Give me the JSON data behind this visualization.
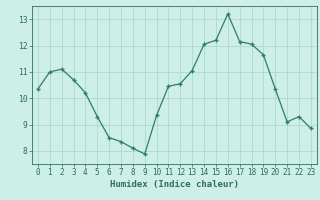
{
  "hours": [
    0,
    1,
    2,
    3,
    4,
    5,
    6,
    7,
    8,
    9,
    10,
    11,
    12,
    13,
    14,
    15,
    16,
    17,
    18,
    19,
    20,
    21,
    22,
    23
  ],
  "values": [
    10.35,
    11.0,
    11.1,
    10.7,
    10.2,
    9.3,
    8.5,
    8.35,
    8.1,
    7.88,
    9.35,
    10.45,
    10.55,
    11.05,
    12.05,
    12.2,
    13.2,
    12.15,
    12.05,
    11.65,
    10.35,
    9.1,
    9.3,
    8.85
  ],
  "xlabel": "Humidex (Indice chaleur)",
  "line_color": "#2d7d6e",
  "bg_color": "#ceeee8",
  "grid_color": "#b0d8cc",
  "text_color": "#2d6e60",
  "ylim": [
    7.5,
    13.5
  ],
  "xlim": [
    -0.5,
    23.5
  ],
  "yticks": [
    8,
    9,
    10,
    11,
    12,
    13
  ],
  "xticks": [
    0,
    1,
    2,
    3,
    4,
    5,
    6,
    7,
    8,
    9,
    10,
    11,
    12,
    13,
    14,
    15,
    16,
    17,
    18,
    19,
    20,
    21,
    22,
    23
  ],
  "tick_fontsize": 5.5,
  "xlabel_fontsize": 6.5
}
